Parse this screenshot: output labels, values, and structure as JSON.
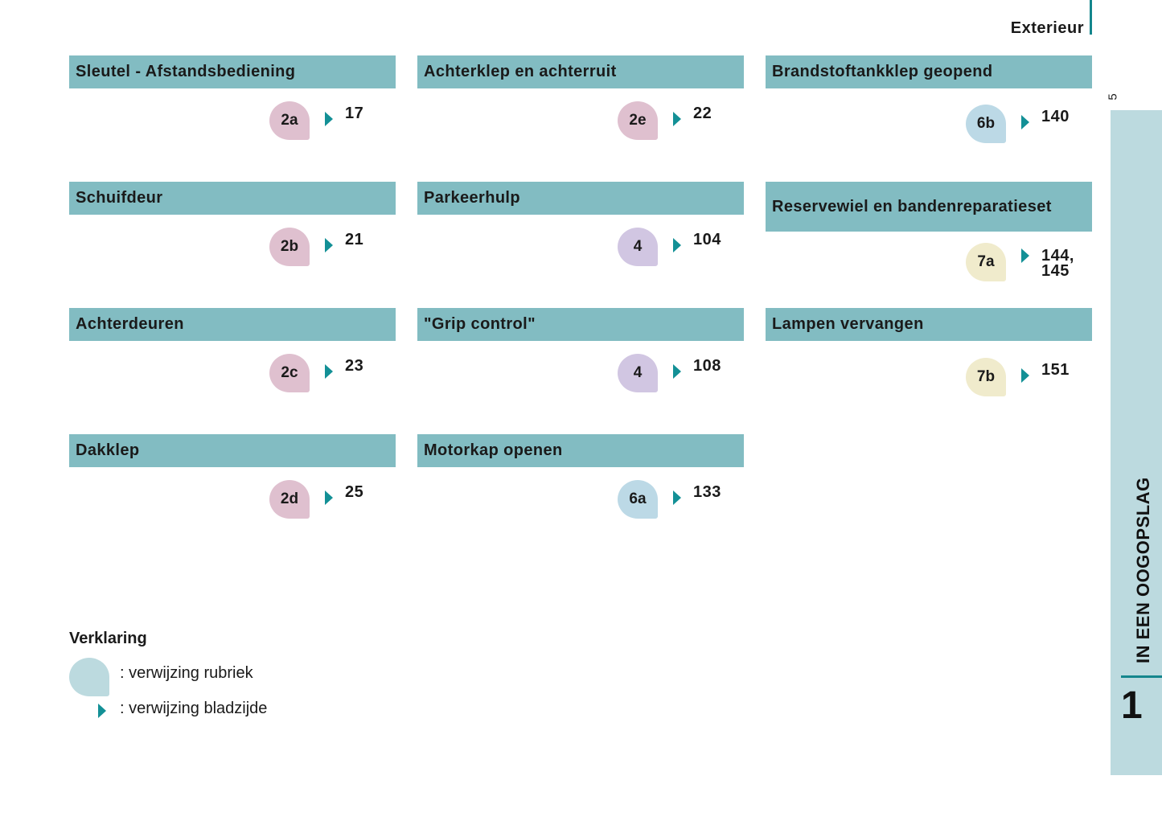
{
  "section_title": "Exterieur",
  "page_number": "5",
  "chapter": {
    "title": "IN EEN OOGOPSLAG",
    "number": "1"
  },
  "colors": {
    "header": "#82bcc2",
    "arrow": "#139096",
    "sidebar": "#bcdadf",
    "pink": "#dfc0cf",
    "purple": "#d1c6e2",
    "blue": "#bcd9e6",
    "yellow": "#f0ebcc"
  },
  "cards": [
    {
      "title": "Sleutel - Afstandsbediening",
      "ref": "2a",
      "page": "17"
    },
    {
      "title": "Schuifdeur",
      "ref": "2b",
      "page": "21"
    },
    {
      "title": "Achterdeuren",
      "ref": "2c",
      "page": "23"
    },
    {
      "title": "Dakklep",
      "ref": "2d",
      "page": "25"
    },
    {
      "title": "Achterklep en achterruit",
      "ref": "2e",
      "page": "22"
    },
    {
      "title": "Parkeerhulp",
      "ref": "4",
      "page": "104"
    },
    {
      "title": "\"Grip control\"",
      "ref": "4",
      "page": "108"
    },
    {
      "title": "Motorkap openen",
      "ref": "6a",
      "page": "133"
    },
    {
      "title": "Brandstoftankklep geopend",
      "ref": "6b",
      "page": "140"
    },
    {
      "title": "Reservewiel en bandenreparatieset",
      "ref": "7a",
      "page": "144,",
      "page2": "145"
    },
    {
      "title": "Lampen vervangen",
      "ref": "7b",
      "page": "151"
    }
  ],
  "legend": {
    "title": "Verklaring",
    "rubric": ": verwijzing rubriek",
    "page": ": verwijzing bladzijde"
  }
}
